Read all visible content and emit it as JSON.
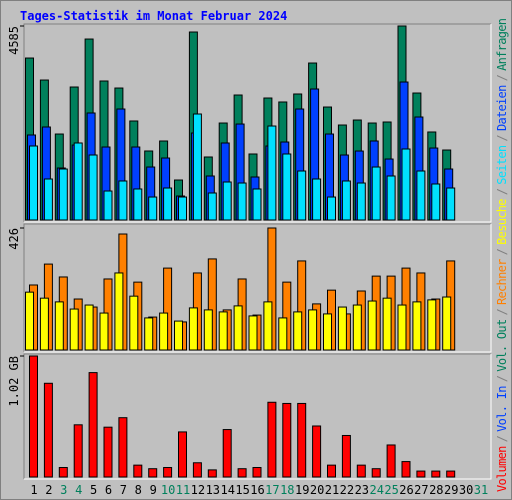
{
  "chart_data": [
    {
      "type": "bar",
      "title": "Tages-Statistik im Monat Februar 2024",
      "ylim": [
        0,
        4585
      ],
      "yticks": [
        4585
      ],
      "series": [
        {
          "name": "Anfragen",
          "color": "#00805c",
          "values": [
            3828,
            3308,
            2032,
            3143,
            4277,
            3285,
            3119,
            2340,
            1631,
            1867,
            945,
            4443,
            1489,
            2292,
            2954,
            1560,
            2883,
            2789,
            2978,
            3710,
            2670,
            2245,
            2363,
            2292,
            2316,
            4585,
            3001,
            2080,
            1654,
            null,
            null
          ]
        },
        {
          "name": "Dateien",
          "color": "#0040ff",
          "values": [
            2009,
            2198,
            1229,
            1772,
            2529,
            1725,
            2623,
            1725,
            1252,
            1465,
            567,
            2056,
            1040,
            1820,
            2268,
            1016,
            1749,
            1843,
            2623,
            3096,
            2032,
            1536,
            1630,
            1867,
            1441,
            3261,
            2434,
            1701,
            1205,
            null,
            null
          ]
        },
        {
          "name": "Seiten",
          "color": "#00e0ff",
          "values": [
            1749,
            969,
            1205,
            1820,
            1536,
            685,
            922,
            733,
            543,
            756,
            543,
            2505,
            638,
            898,
            874,
            733,
            2221,
            1560,
            1158,
            969,
            543,
            922,
            874,
            1252,
            1040,
            1678,
            1158,
            851,
            756,
            null,
            null
          ]
        }
      ]
    },
    {
      "type": "bar",
      "ylim": [
        0,
        426
      ],
      "yticks": [
        426
      ],
      "series": [
        {
          "name": "Besuche",
          "color": "#ffff00",
          "values": [
            202,
            181,
            168,
            143,
            157,
            129,
            269,
            188,
            112,
            129,
            101,
            147,
            140,
            133,
            154,
            119,
            168,
            112,
            133,
            140,
            126,
            150,
            157,
            171,
            181,
            157,
            168,
            175,
            185,
            null,
            null
          ]
        },
        {
          "name": "Rechner",
          "color": "#ff8000",
          "values": [
            227,
            300,
            255,
            178,
            150,
            248,
            405,
            237,
            115,
            286,
            98,
            269,
            318,
            140,
            248,
            122,
            426,
            237,
            311,
            161,
            209,
            126,
            206,
            258,
            258,
            286,
            269,
            178,
            311,
            null,
            null
          ]
        }
      ]
    },
    {
      "type": "bar",
      "ylim": [
        0,
        1.02
      ],
      "yticks": [
        {
          "value": 1.02,
          "label": "1.02 GB"
        }
      ],
      "x": [
        1,
        2,
        3,
        4,
        5,
        6,
        7,
        8,
        9,
        10,
        11,
        12,
        13,
        14,
        15,
        16,
        17,
        18,
        19,
        20,
        21,
        22,
        23,
        24,
        25,
        26,
        27,
        28,
        29,
        30,
        31
      ],
      "weekend_days": [
        3,
        4,
        10,
        11,
        17,
        18,
        24,
        25,
        31
      ],
      "weekend_color": "#00805c",
      "weekday_color": "#000000",
      "legend_separator": "/",
      "series": [
        {
          "name": "Volumen",
          "color": "#ff0000",
          "values": [
            1.02,
            0.79,
            0.08,
            0.44,
            0.88,
            0.42,
            0.5,
            0.1,
            0.07,
            0.08,
            0.38,
            0.12,
            0.06,
            0.4,
            0.07,
            0.08,
            0.63,
            0.62,
            0.62,
            0.43,
            0.1,
            0.35,
            0.1,
            0.07,
            0.27,
            0.13,
            0.05,
            0.05,
            0.05,
            null,
            null
          ]
        },
        {
          "name": "Vol. In",
          "color": "#0040ff"
        },
        {
          "name": "Vol. Out",
          "color": "#00805c"
        }
      ]
    }
  ]
}
